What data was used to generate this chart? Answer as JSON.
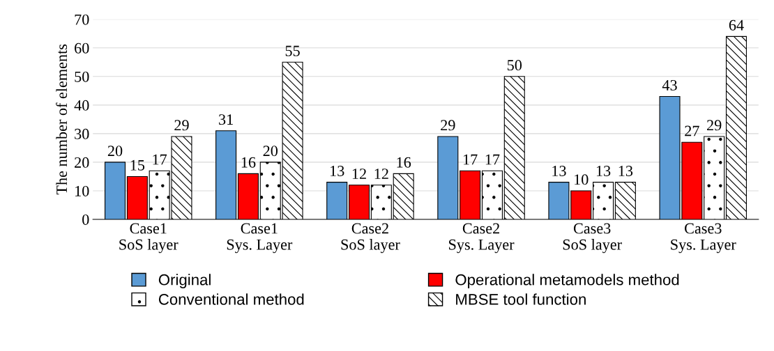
{
  "chart_data": {
    "type": "bar",
    "ylabel": "The number of elements",
    "categories": [
      "Case1\nSoS layer",
      "Case1\nSys. Layer",
      "Case2\nSoS layer",
      "Case2\nSys. Layer",
      "Case3\nSoS layer",
      "Case3\nSys. Layer"
    ],
    "series": [
      {
        "name": "Original",
        "color": "#5b9bd5",
        "values": [
          20,
          31,
          13,
          29,
          13,
          43
        ]
      },
      {
        "name": "Operational metamodels method",
        "color": "#ff0000",
        "values": [
          15,
          16,
          12,
          17,
          10,
          27
        ]
      },
      {
        "name": "Conventional method",
        "color": "#ffffff",
        "values": [
          17,
          20,
          12,
          17,
          13,
          29
        ]
      },
      {
        "name": "MBSE tool function",
        "color": "#ffffff",
        "values": [
          29,
          55,
          16,
          50,
          13,
          64
        ]
      }
    ],
    "ylim": [
      0,
      70
    ],
    "yticks": [
      0,
      10,
      20,
      30,
      40,
      50,
      60,
      70
    ],
    "grid": "y",
    "legend": "bottom",
    "data_labels": true
  }
}
